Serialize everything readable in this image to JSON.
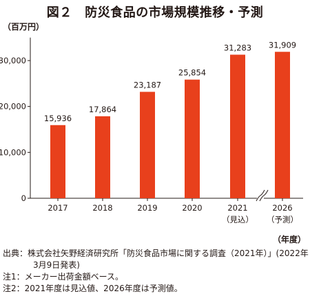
{
  "header": {
    "title": "図２　防災食品の市場規模推移・予測",
    "unit_label": "（百万円）",
    "year_label": "（年度）"
  },
  "chart_data": {
    "type": "bar",
    "title": "図２　防災食品の市場規模推移・予測",
    "ylabel": "（百万円）",
    "xlabel": "（年度）",
    "ylim": [
      0,
      35000
    ],
    "yticks": [
      0,
      10000,
      20000,
      30000
    ],
    "ytick_labels": [
      "0",
      "10,000",
      "20,000",
      "30,000"
    ],
    "categories": [
      "2017",
      "2018",
      "2019",
      "2020",
      "2021",
      "2026"
    ],
    "sub_labels": [
      "",
      "",
      "",
      "",
      "（見込）",
      "（予測）"
    ],
    "values": [
      15936,
      17864,
      23187,
      25854,
      31283,
      31909
    ],
    "value_labels": [
      "15,936",
      "17,864",
      "23,187",
      "25,854",
      "31,283",
      "31,909"
    ],
    "axis_break_between": [
      "2021",
      "2026"
    ],
    "grid": false,
    "bar_color": "#e8401c"
  },
  "notes": [
    {
      "lead": "出典：",
      "text": "株式会社矢野経済研究所「防災食品市場に関する調査（2021年）」(2022年",
      "cont": "3月9日発表)"
    },
    {
      "lead": "注1：",
      "text": "メーカー出荷金額ベース。"
    },
    {
      "lead": "注2：",
      "text": "2021年度は見込値、2026年度は予測値。"
    }
  ]
}
